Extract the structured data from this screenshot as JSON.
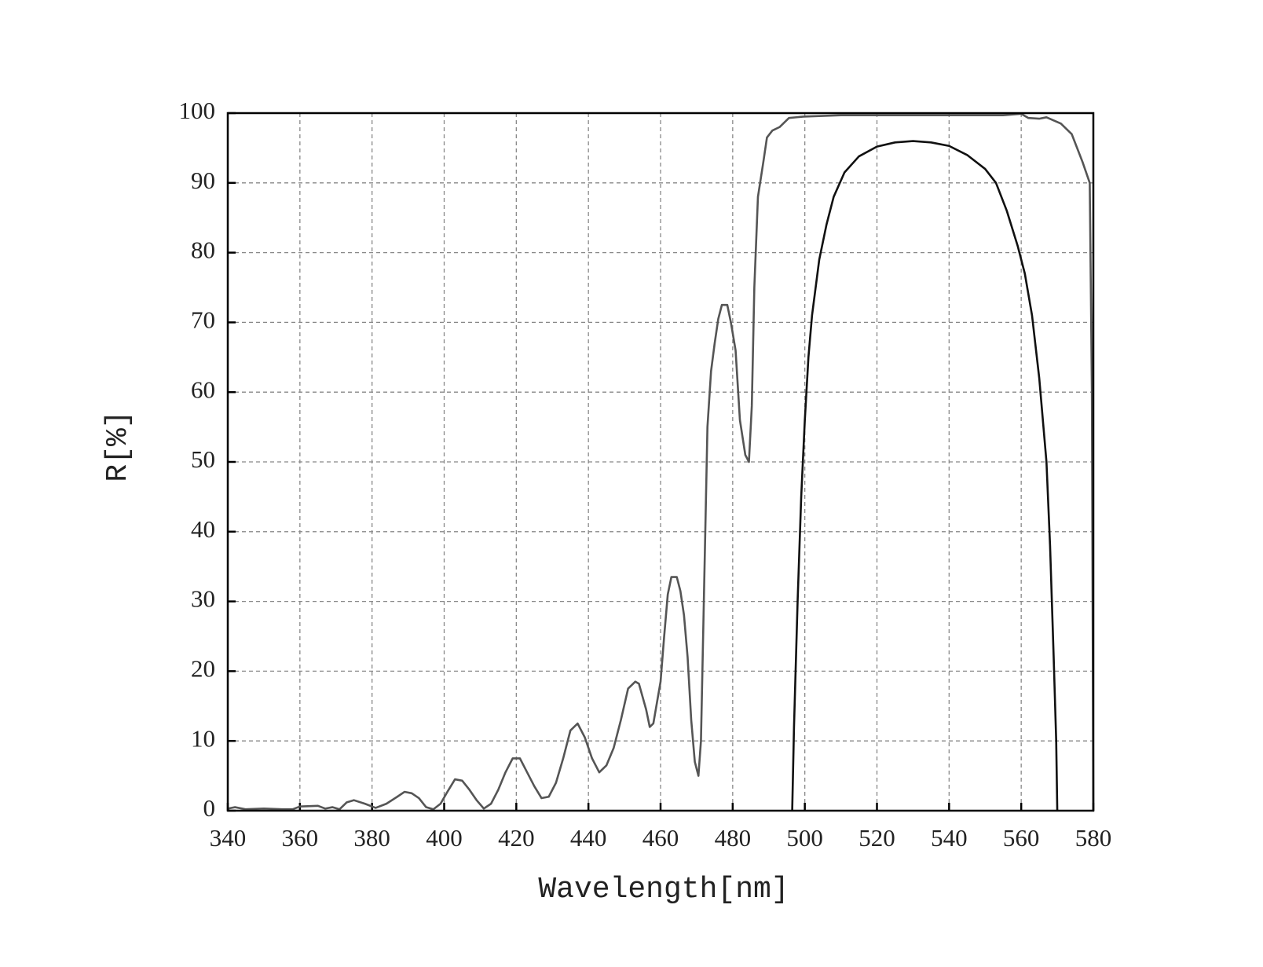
{
  "chart_data": {
    "type": "line",
    "xlabel": "Wavelength[nm]",
    "ylabel": "R[%]",
    "xlim": [
      340,
      580
    ],
    "xticks": [
      340,
      360,
      380,
      400,
      420,
      440,
      460,
      480,
      500,
      520,
      540,
      560,
      580
    ],
    "ylim": [
      0,
      100
    ],
    "yticks": [
      0,
      10,
      20,
      30,
      40,
      50,
      60,
      70,
      80,
      90,
      100
    ],
    "grid": true,
    "series": [
      {
        "color": "#555555",
        "x": [
          340,
          342,
          345,
          350,
          355,
          358,
          360,
          365,
          367,
          369,
          371,
          373,
          375,
          378,
          381,
          384,
          387,
          389,
          391,
          393,
          395,
          397,
          399,
          401,
          403,
          405,
          407,
          409,
          411,
          413,
          415,
          417,
          419,
          421,
          423,
          425,
          427,
          429,
          431,
          433,
          435,
          437,
          439,
          441,
          443,
          445,
          447,
          449,
          451,
          453,
          454,
          456,
          457,
          458,
          460,
          461,
          462,
          463,
          464.5,
          465.5,
          466.5,
          467.5,
          468.5,
          469.5,
          470.5,
          471.2,
          472,
          473,
          474,
          475,
          476,
          477,
          478.5,
          479.5,
          480.8,
          482,
          483.5,
          484.5,
          485.3,
          486,
          487,
          488.5,
          489.5,
          491,
          493,
          495.6,
          499.6,
          510,
          520,
          540,
          555,
          560,
          562,
          565,
          567,
          571,
          574,
          577,
          579,
          579.6,
          580
        ],
        "values": [
          0.3,
          0.5,
          0.2,
          0.3,
          0.2,
          0.2,
          0.6,
          0.7,
          0.3,
          0.5,
          0.2,
          1.2,
          1.5,
          1.0,
          0.4,
          1.0,
          2.0,
          2.7,
          2.5,
          1.8,
          0.5,
          0.2,
          1.0,
          2.8,
          4.5,
          4.3,
          3.0,
          1.5,
          0.3,
          1.0,
          3.0,
          5.5,
          7.5,
          7.5,
          5.5,
          3.5,
          1.8,
          2.0,
          4.0,
          7.5,
          11.5,
          12.5,
          10.5,
          7.5,
          5.5,
          6.5,
          9.0,
          13.0,
          17.5,
          18.5,
          18.2,
          14.5,
          12.0,
          12.5,
          18.5,
          25,
          31,
          33.5,
          33.5,
          31.5,
          28,
          22,
          13,
          7,
          5,
          10,
          30,
          55,
          63,
          67,
          70.5,
          72.5,
          72.5,
          70,
          66,
          56,
          51,
          50,
          58,
          75,
          88,
          93,
          96.5,
          97.5,
          98.0,
          99.3,
          99.5,
          99.7,
          99.7,
          99.7,
          99.7,
          99.9,
          99.3,
          99.2,
          99.4,
          98.5,
          97,
          93,
          90,
          60,
          0
        ]
      },
      {
        "color": "#111111",
        "x": [
          496.5,
          497,
          498,
          499,
          500,
          501,
          502,
          504,
          506,
          508,
          511,
          515,
          520,
          525,
          530,
          535,
          540,
          545,
          550,
          553,
          556,
          559,
          561,
          563,
          565,
          567,
          568,
          569,
          569.7,
          570
        ],
        "values": [
          0,
          12,
          30,
          45,
          56,
          65,
          71,
          79,
          84,
          88,
          91.5,
          93.8,
          95.2,
          95.8,
          96,
          95.8,
          95.3,
          94,
          92,
          90,
          86,
          81,
          77,
          71,
          62,
          50,
          38,
          22,
          10,
          0
        ]
      }
    ]
  }
}
